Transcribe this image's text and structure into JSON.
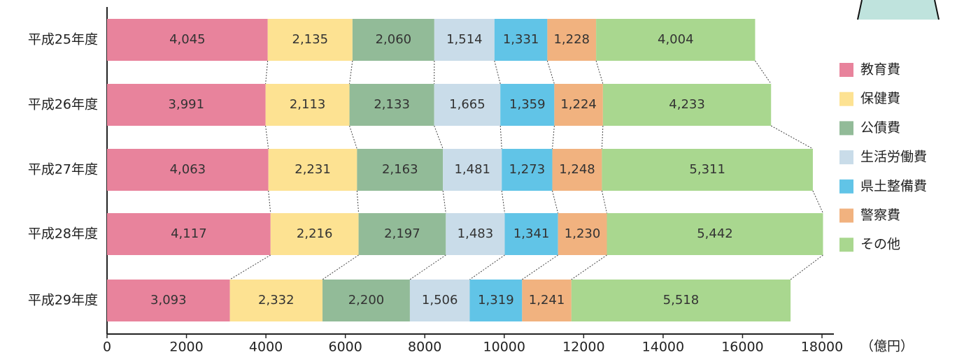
{
  "chart_data": {
    "type": "stacked-barh",
    "categories": [
      "平成25年度",
      "平成26年度",
      "平成27年度",
      "平成28年度",
      "平成29年度"
    ],
    "series": [
      {
        "name": "教育費",
        "color": "#e8839c",
        "values": [
          4045,
          3991,
          4063,
          4117,
          3093
        ],
        "value_labels": [
          "4,045",
          "3,991",
          "4,063",
          "4,117",
          "3,093"
        ]
      },
      {
        "name": "保健費",
        "color": "#fde292",
        "values": [
          2135,
          2113,
          2231,
          2216,
          2332
        ],
        "value_labels": [
          "2,135",
          "2,113",
          "2,231",
          "2,216",
          "2,332"
        ]
      },
      {
        "name": "公債費",
        "color": "#92bb98",
        "values": [
          2060,
          2133,
          2163,
          2197,
          2200
        ],
        "value_labels": [
          "2,060",
          "2,133",
          "2,163",
          "2,197",
          "2,200"
        ]
      },
      {
        "name": "生活労働費",
        "color": "#c9dce9",
        "values": [
          1514,
          1665,
          1481,
          1483,
          1506
        ],
        "value_labels": [
          "1,514",
          "1,665",
          "1,481",
          "1,483",
          "1,506"
        ]
      },
      {
        "name": "県土整備費",
        "color": "#61c4e7",
        "values": [
          1331,
          1359,
          1273,
          1341,
          1319
        ],
        "value_labels": [
          "1,331",
          "1,359",
          "1,273",
          "1,341",
          "1,319"
        ]
      },
      {
        "name": "警察費",
        "color": "#f1b27f",
        "values": [
          1228,
          1224,
          1248,
          1230,
          1241
        ],
        "value_labels": [
          "1,228",
          "1,224",
          "1,248",
          "1,230",
          "1,241"
        ]
      },
      {
        "name": "その他",
        "color": "#a9d78f",
        "values": [
          4004,
          4233,
          5311,
          5442,
          5518
        ],
        "value_labels": [
          "4,004",
          "4,233",
          "5,311",
          "5,442",
          "5,518"
        ]
      }
    ],
    "x_label": "（億円）",
    "xlim": [
      0,
      18000
    ],
    "xticks": [
      0,
      2000,
      4000,
      6000,
      8000,
      10000,
      12000,
      14000,
      16000,
      18000
    ],
    "legend": "right"
  }
}
